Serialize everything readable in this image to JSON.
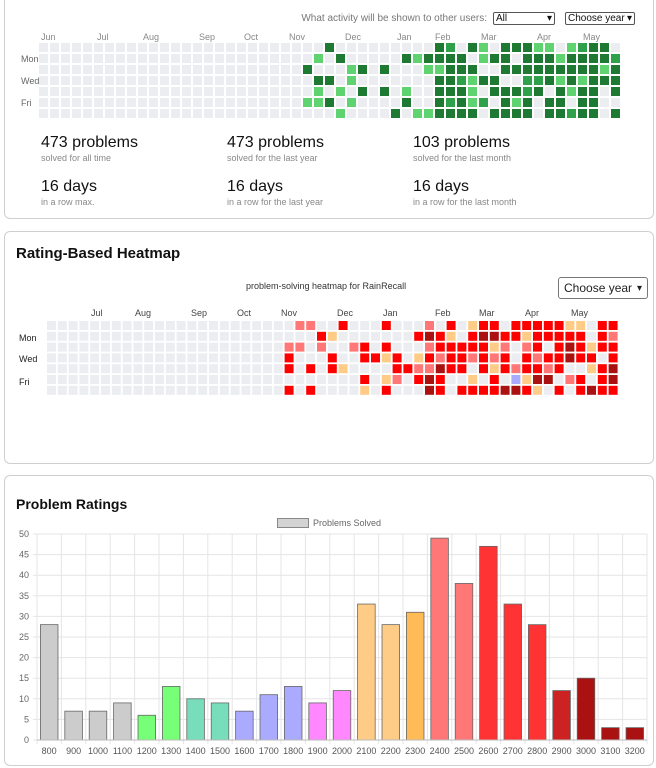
{
  "activity": {
    "visibility_label": "What activity will be shown to other users:",
    "visibility_value": "All",
    "year_select": "Choose year",
    "months": [
      "Jun",
      "Jul",
      "Aug",
      "Sep",
      "Oct",
      "Nov",
      "Dec",
      "Jan",
      "Feb",
      "Mar",
      "Apr",
      "May"
    ],
    "days": [
      "Mon",
      "Wed",
      "Fri"
    ],
    "colors": {
      "empty": "#ebedf0",
      "dark": "#1e7a33",
      "mid": "#2fa14a",
      "light": "#5fd36f"
    },
    "stats": [
      {
        "big": "473 problems",
        "small": "solved for all time"
      },
      {
        "big": "473 problems",
        "small": "solved for the last year"
      },
      {
        "big": "103 problems",
        "small": "solved for the last month"
      },
      {
        "big": "16 days",
        "small": "in a row max."
      },
      {
        "big": "16 days",
        "small": "in a row for the last year"
      },
      {
        "big": "16 days",
        "small": "in a row for the last month"
      }
    ]
  },
  "rating_heatmap": {
    "title": "Rating-Based Heatmap",
    "subtitle": "problem-solving heatmap for RainRecall",
    "year_select": "Choose year",
    "months": [
      "Jul",
      "Aug",
      "Sep",
      "Oct",
      "Nov",
      "Dec",
      "Jan",
      "Feb",
      "Mar",
      "Apr",
      "May"
    ],
    "days": [
      "Mon",
      "Wed",
      "Fri"
    ]
  },
  "ratings": {
    "title": "Problem Ratings",
    "chart_data": {
      "type": "bar",
      "categories": [
        "800",
        "900",
        "1000",
        "1100",
        "1200",
        "1300",
        "1400",
        "1500",
        "1600",
        "1700",
        "1800",
        "1900",
        "2000",
        "2100",
        "2200",
        "2300",
        "2400",
        "2500",
        "2600",
        "2700",
        "2800",
        "2900",
        "3000",
        "3100",
        "3200"
      ],
      "series": [
        {
          "name": "Problems Solved",
          "values": [
            28,
            7,
            7,
            9,
            6,
            13,
            10,
            9,
            7,
            11,
            13,
            9,
            12,
            33,
            28,
            31,
            49,
            38,
            47,
            33,
            28,
            12,
            15,
            3,
            3
          ]
        }
      ],
      "colors": [
        "#cccccc",
        "#cccccc",
        "#cccccc",
        "#cccccc",
        "#77ff77",
        "#77ff77",
        "#77ddbb",
        "#77ddbb",
        "#aaaaff",
        "#aaaaff",
        "#aaaaff",
        "#ff88ff",
        "#ff88ff",
        "#ffcc88",
        "#ffcc88",
        "#ffbb55",
        "#ff7777",
        "#ff7777",
        "#ff3333",
        "#ff3333",
        "#ff3333",
        "#cc2222",
        "#aa1111",
        "#aa1111",
        "#aa1111"
      ],
      "yticks": [
        0,
        5,
        10,
        15,
        20,
        25,
        30,
        35,
        40,
        45,
        50
      ],
      "ylim": [
        0,
        50
      ],
      "grid": true,
      "legend": "top-center"
    }
  }
}
